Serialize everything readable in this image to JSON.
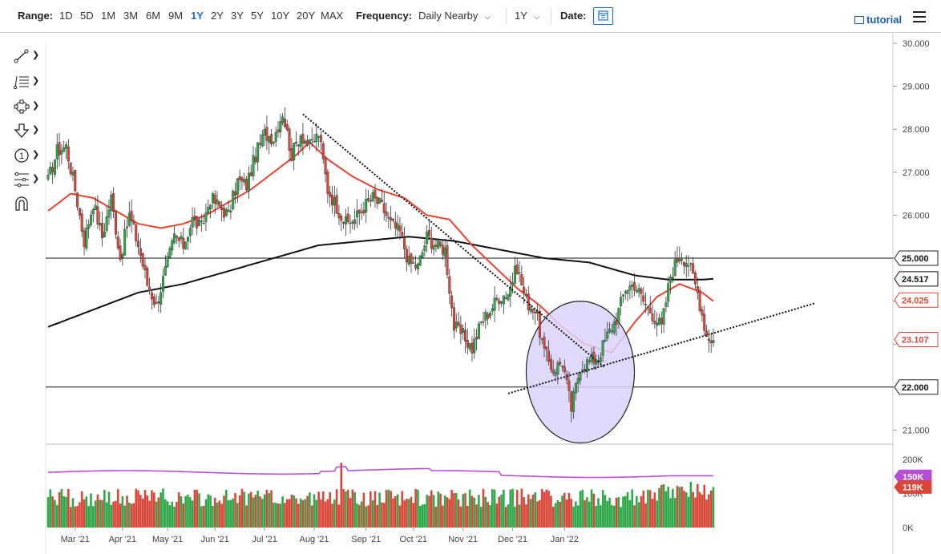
{
  "toolbar": {
    "range_label": "Range:",
    "ranges": [
      "1D",
      "5D",
      "1M",
      "3M",
      "6M",
      "9M",
      "1Y",
      "2Y",
      "3Y",
      "5Y",
      "10Y",
      "20Y",
      "MAX"
    ],
    "active_range": "1Y",
    "frequency_label": "Frequency:",
    "frequency_value": "Daily Nearby",
    "period_value": "1Y",
    "date_label": "Date:",
    "tutorial_label": "tutorial"
  },
  "side_tools": [
    "trend-line-tool",
    "fibonacci-tool",
    "shapes-tool",
    "arrow-marker-tool",
    "number-marker-tool",
    "measure-tool",
    "magnet-tool"
  ],
  "colors": {
    "up": "#2fa84a",
    "down": "#d8473a",
    "ma_fast": "#e8432e",
    "ma_slow": "#111111",
    "volume_avg": "#b64fd8",
    "circle_fill": "#ddd3fb",
    "accent": "#1a6fd1"
  },
  "chart_data": {
    "type": "candlestick",
    "x_tick_labels": [
      "Mar '21",
      "Apr '21",
      "May '21",
      "Jun '21",
      "Jul '21",
      "Aug '21",
      "Sep '21",
      "Oct '21",
      "Nov '21",
      "Dec '21",
      "Jan '22"
    ],
    "y_tick_labels": [
      "21.000",
      "22.000",
      "23.000",
      "24.000",
      "25.000",
      "26.000",
      "27.000",
      "28.000",
      "29.000",
      "30.000"
    ],
    "ylim": [
      20.7,
      30.0
    ],
    "price_tags": [
      {
        "label": "25.000",
        "value": 25.0,
        "style": "line"
      },
      {
        "label": "24.517",
        "value": 24.517,
        "style": "ma_slow"
      },
      {
        "label": "24.025",
        "value": 24.025,
        "style": "ma_fast"
      },
      {
        "label": "23.107",
        "value": 23.107,
        "style": "last"
      },
      {
        "label": "22.000",
        "value": 22.0,
        "style": "line"
      }
    ],
    "horizontal_lines": [
      25.0,
      22.0
    ],
    "anchors": [
      [
        0,
        26.8
      ],
      [
        4,
        27.5
      ],
      [
        8,
        27.6
      ],
      [
        12,
        26.6
      ],
      [
        16,
        25.4
      ],
      [
        20,
        26.3
      ],
      [
        24,
        25.5
      ],
      [
        28,
        26.4
      ],
      [
        32,
        25.0
      ],
      [
        36,
        26.0
      ],
      [
        40,
        25.3
      ],
      [
        44,
        24.4
      ],
      [
        48,
        23.9
      ],
      [
        52,
        24.7
      ],
      [
        56,
        25.5
      ],
      [
        60,
        25.3
      ],
      [
        64,
        25.9
      ],
      [
        68,
        25.7
      ],
      [
        72,
        26.4
      ],
      [
        76,
        26.2
      ],
      [
        80,
        26.0
      ],
      [
        84,
        26.8
      ],
      [
        88,
        26.7
      ],
      [
        92,
        27.4
      ],
      [
        96,
        27.9
      ],
      [
        100,
        27.8
      ],
      [
        104,
        28.4
      ],
      [
        108,
        27.4
      ],
      [
        112,
        27.9
      ],
      [
        116,
        27.6
      ],
      [
        120,
        27.9
      ],
      [
        124,
        26.6
      ],
      [
        128,
        26.2
      ],
      [
        132,
        25.8
      ],
      [
        136,
        25.9
      ],
      [
        140,
        26.2
      ],
      [
        144,
        26.4
      ],
      [
        148,
        26.2
      ],
      [
        152,
        25.8
      ],
      [
        156,
        25.6
      ],
      [
        160,
        24.9
      ],
      [
        164,
        24.8
      ],
      [
        168,
        25.5
      ],
      [
        172,
        25.3
      ],
      [
        176,
        25.2
      ],
      [
        180,
        23.4
      ],
      [
        184,
        23.2
      ],
      [
        188,
        22.9
      ],
      [
        192,
        23.5
      ],
      [
        196,
        23.8
      ],
      [
        200,
        24.1
      ],
      [
        204,
        24.2
      ],
      [
        208,
        24.8
      ],
      [
        212,
        24.0
      ],
      [
        216,
        23.8
      ],
      [
        220,
        22.8
      ],
      [
        224,
        22.4
      ],
      [
        228,
        22.6
      ],
      [
        232,
        21.5
      ],
      [
        236,
        22.5
      ],
      [
        240,
        22.6
      ],
      [
        244,
        22.7
      ],
      [
        248,
        23.2
      ],
      [
        252,
        23.6
      ],
      [
        256,
        24.3
      ],
      [
        260,
        24.4
      ],
      [
        264,
        24.0
      ],
      [
        268,
        23.7
      ],
      [
        272,
        23.4
      ],
      [
        276,
        24.6
      ],
      [
        280,
        25.1
      ],
      [
        284,
        24.9
      ],
      [
        288,
        24.2
      ],
      [
        292,
        23.2
      ],
      [
        295,
        23.1
      ]
    ],
    "ma_fast_points": [
      [
        0,
        26.1
      ],
      [
        10,
        26.5
      ],
      [
        20,
        26.4
      ],
      [
        30,
        26.1
      ],
      [
        40,
        25.8
      ],
      [
        50,
        25.7
      ],
      [
        60,
        25.8
      ],
      [
        70,
        26.0
      ],
      [
        80,
        26.3
      ],
      [
        90,
        26.6
      ],
      [
        100,
        27.0
      ],
      [
        110,
        27.4
      ],
      [
        116,
        27.7
      ],
      [
        124,
        27.3
      ],
      [
        135,
        26.9
      ],
      [
        146,
        26.6
      ],
      [
        158,
        26.4
      ],
      [
        168,
        26.0
      ],
      [
        178,
        25.9
      ],
      [
        188,
        25.3
      ],
      [
        198,
        24.8
      ],
      [
        208,
        24.3
      ],
      [
        218,
        23.9
      ],
      [
        228,
        23.4
      ],
      [
        238,
        23.0
      ],
      [
        250,
        22.8
      ],
      [
        260,
        23.5
      ],
      [
        270,
        24.1
      ],
      [
        280,
        24.4
      ],
      [
        290,
        24.2
      ],
      [
        295,
        24.0
      ]
    ],
    "ma_slow_points": [
      [
        0,
        23.4
      ],
      [
        20,
        23.8
      ],
      [
        40,
        24.2
      ],
      [
        60,
        24.4
      ],
      [
        80,
        24.7
      ],
      [
        100,
        25.0
      ],
      [
        120,
        25.3
      ],
      [
        140,
        25.4
      ],
      [
        160,
        25.5
      ],
      [
        180,
        25.4
      ],
      [
        200,
        25.2
      ],
      [
        220,
        25.0
      ],
      [
        240,
        24.9
      ],
      [
        260,
        24.6
      ],
      [
        275,
        24.5
      ],
      [
        290,
        24.5
      ],
      [
        295,
        24.52
      ]
    ],
    "trendlines": [
      {
        "from": [
          113,
          28.35
        ],
        "to": [
          247,
          22.45
        ],
        "style": "dotted"
      },
      {
        "from": [
          204,
          21.85
        ],
        "to": [
          340,
          23.95
        ],
        "style": "dotted"
      }
    ],
    "ellipse": {
      "center": [
        236,
        22.35
      ],
      "rx_days": 24,
      "ry": 1.65
    },
    "volume_tick_labels": [
      "200K",
      "150K",
      "100K",
      "0K"
    ],
    "volume_ylim": [
      0,
      200000
    ],
    "volume_tags": [
      {
        "label": "150K",
        "value": 150000,
        "style": "avg"
      },
      {
        "label": "119K",
        "value": 119000,
        "style": "last"
      }
    ]
  }
}
